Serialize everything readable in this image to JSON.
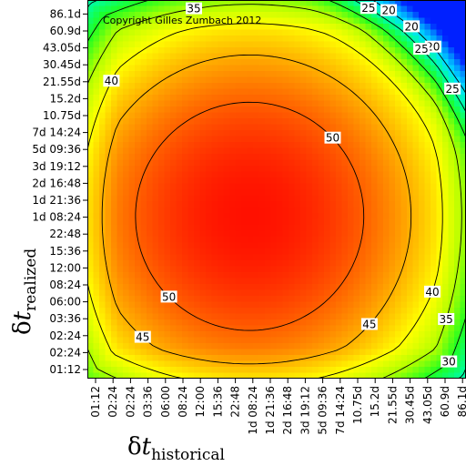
{
  "chart_data": {
    "type": "heatmap",
    "title": "",
    "copyright": "Copyright Gilles Zumbach 2012",
    "xlabel": {
      "symbol": "δ",
      "variable": "t",
      "subscript": "historical"
    },
    "ylabel": {
      "symbol": "δ",
      "variable": "t",
      "subscript": "realized"
    },
    "x_ticks": [
      "01:12",
      "02:24",
      "02:24",
      "03:36",
      "06:00",
      "08:24",
      "12:00",
      "15:36",
      "22:48",
      "1d 08:24",
      "1d 21:36",
      "2d 16:48",
      "3d 19:12",
      "5d 09:36",
      "7d 14:24",
      "10.75d",
      "15.2d",
      "21.55d",
      "30.45d",
      "43.05d",
      "60.9d",
      "86.1d"
    ],
    "y_ticks": [
      "01:12",
      "02:24",
      "02:24",
      "03:36",
      "06:00",
      "08:24",
      "12:00",
      "15:36",
      "22:48",
      "1d 08:24",
      "1d 21:36",
      "2d 16:48",
      "3d 19:12",
      "5d 09:36",
      "7d 14:24",
      "10.75d",
      "15.2d",
      "21.55d",
      "30.45d",
      "43.05d",
      "60.9d",
      "86.1d"
    ],
    "value_range": [
      10,
      55
    ],
    "peak": {
      "x": "1d 08:24",
      "y": "1d 08:24",
      "value": 55
    },
    "colormap": [
      "#0020ff",
      "#0090ff",
      "#00e0ff",
      "#00ffa0",
      "#20ff20",
      "#b0ff00",
      "#ffff00",
      "#ffb000",
      "#ff6000",
      "#ff1000"
    ],
    "contours": [
      {
        "level": 20,
        "labels": [
          "20",
          "20",
          "20",
          "20"
        ]
      },
      {
        "level": 25,
        "labels": [
          "25",
          "25",
          "25"
        ]
      },
      {
        "level": 30,
        "labels": [
          "30",
          "30"
        ]
      },
      {
        "level": 35,
        "labels": [
          "35",
          "35"
        ]
      },
      {
        "level": 40,
        "labels": [
          "40",
          "40",
          "40"
        ]
      },
      {
        "level": 45,
        "labels": [
          "45",
          "45"
        ]
      },
      {
        "level": 50,
        "labels": [
          "50",
          "50"
        ]
      }
    ],
    "grid": false,
    "legend": "none"
  }
}
